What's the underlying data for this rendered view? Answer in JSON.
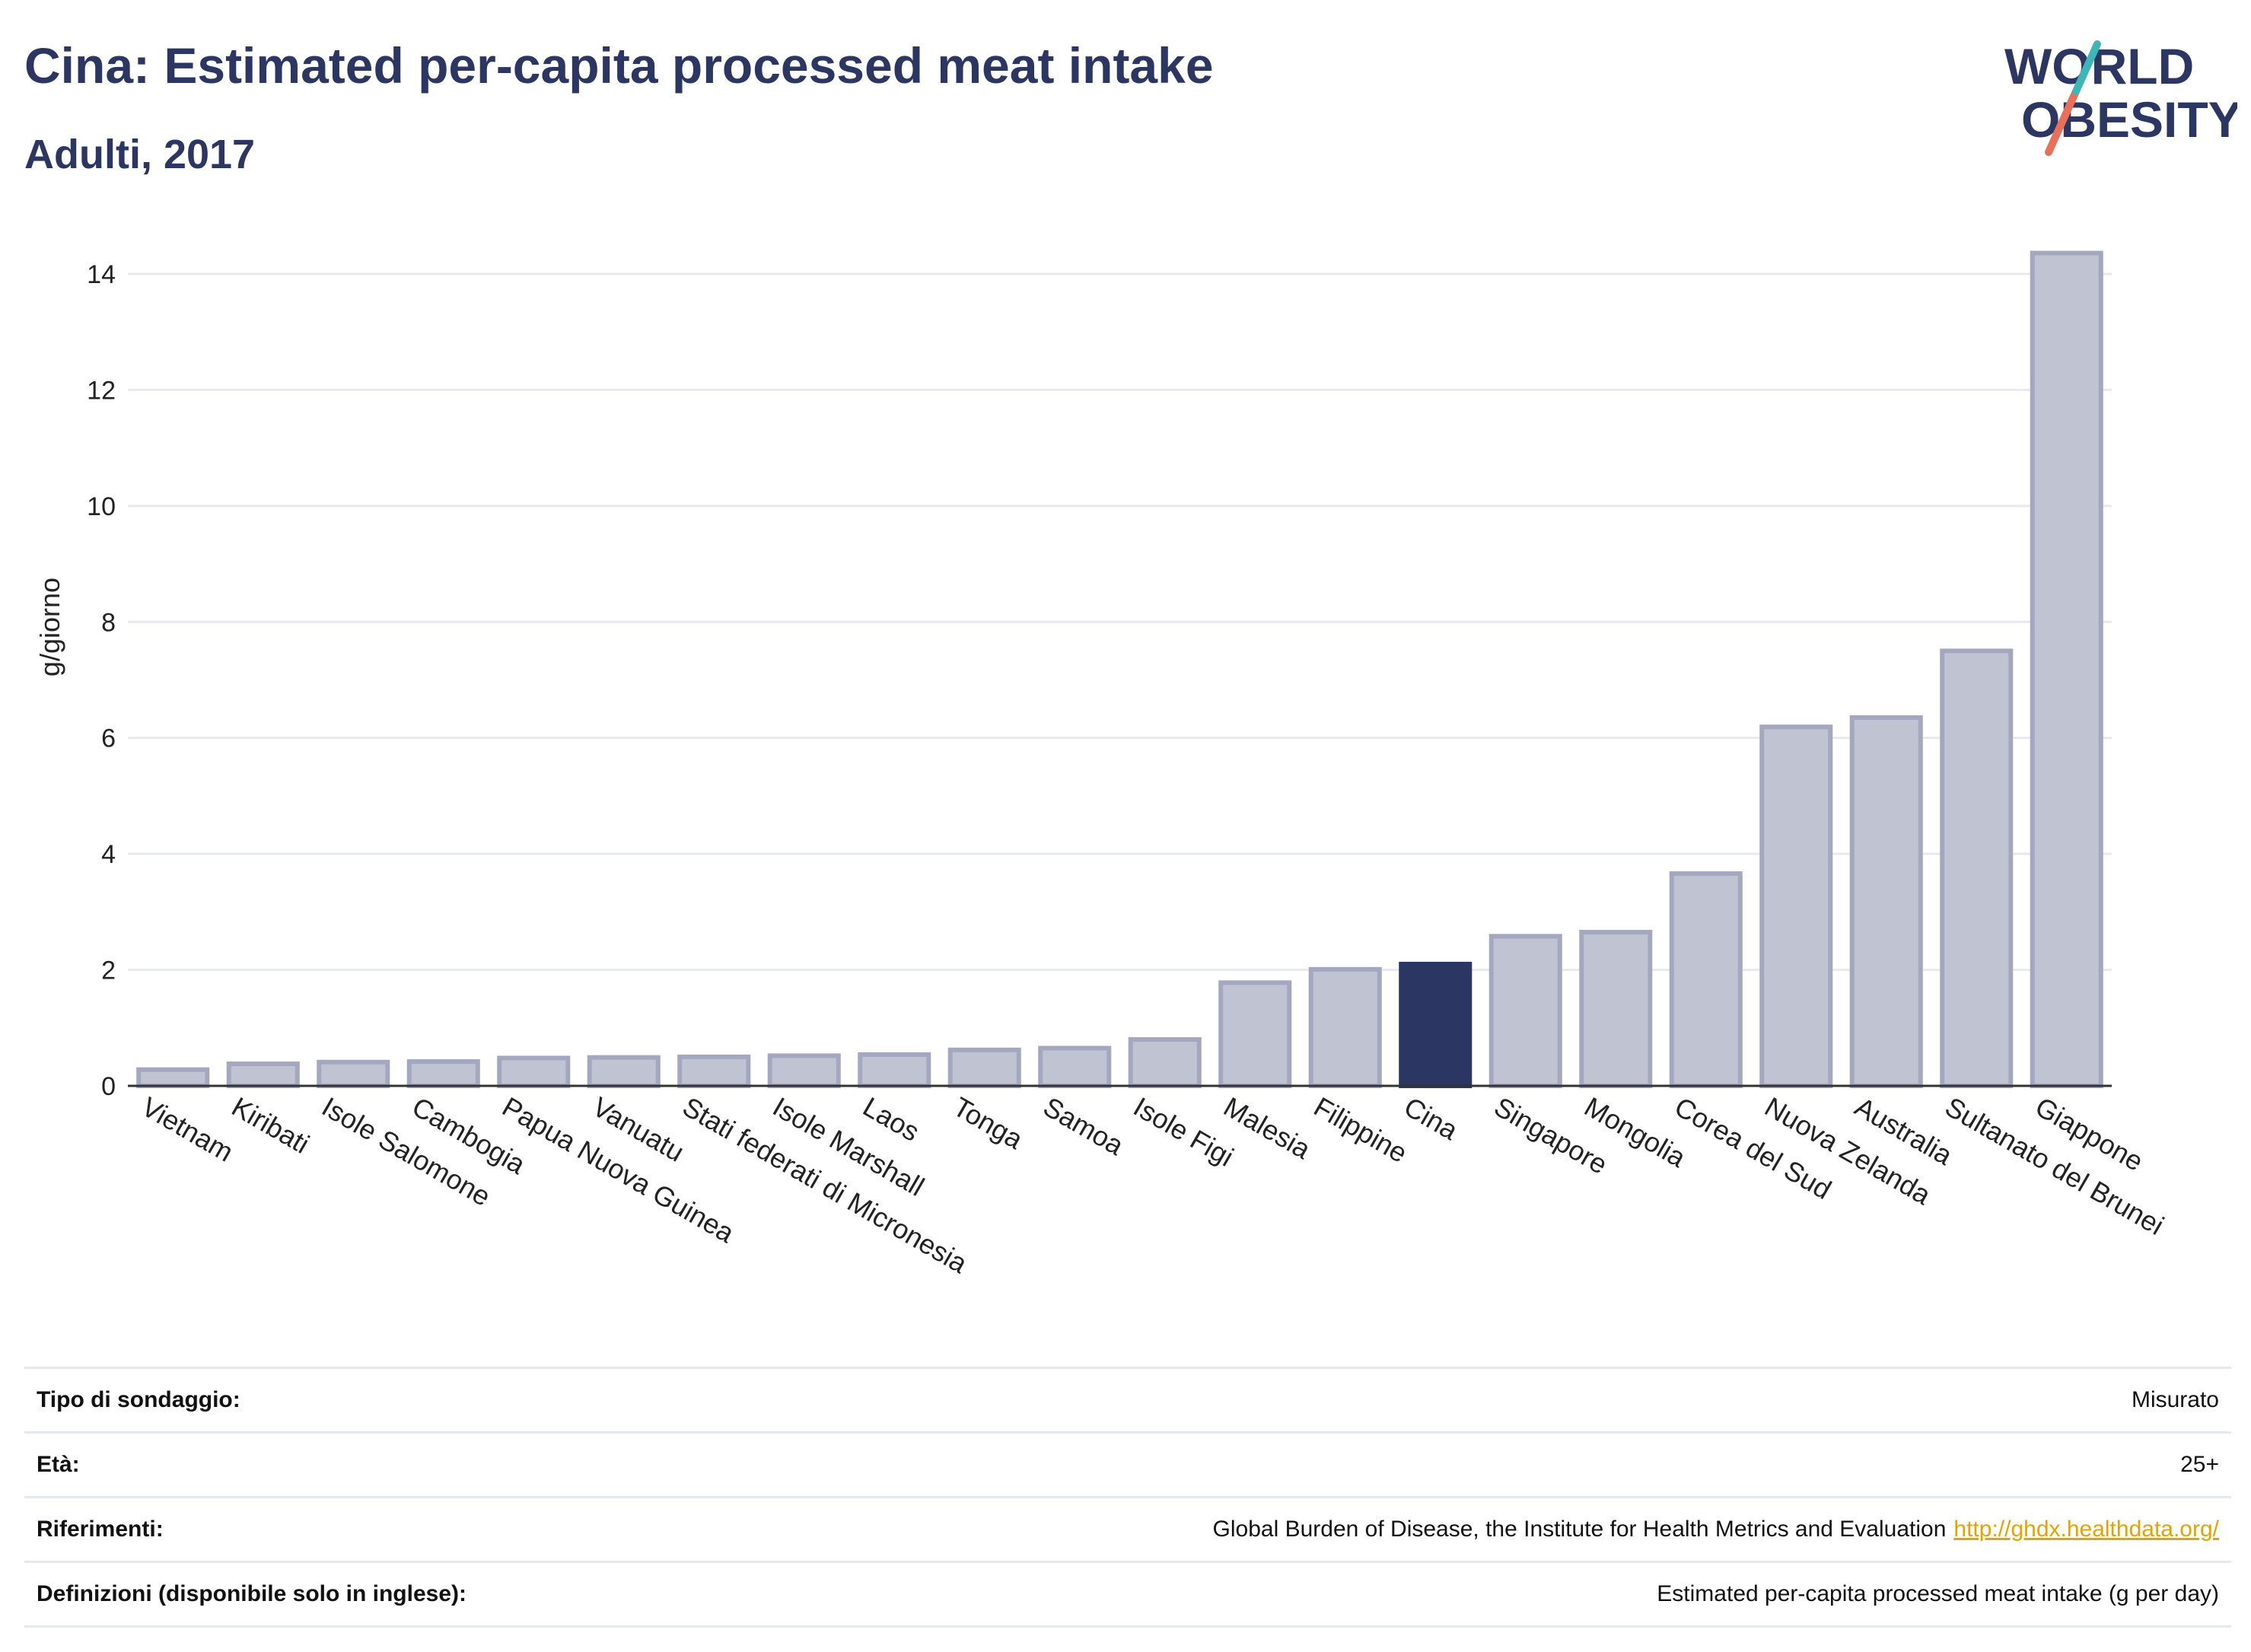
{
  "header": {
    "title": "Cina: Estimated per-capita processed meat intake",
    "subtitle": "Adulti, 2017"
  },
  "logo": {
    "line1": "WORLD",
    "line2": "OBESITY",
    "colors": {
      "text": "#2b3663",
      "teal": "#3cb6b6",
      "coral": "#e8705a"
    }
  },
  "chart_data": {
    "type": "bar",
    "ylabel": "g/giorno",
    "ylim": [
      0,
      15
    ],
    "yticks": [
      0,
      2,
      4,
      6,
      8,
      10,
      12,
      14
    ],
    "highlight": "Cina",
    "colors": {
      "bar": "#c0c3d1",
      "bar_edge": "#a3a8c0",
      "highlight": "#2b3663",
      "grid": "#e8e9ef"
    },
    "categories": [
      "Vietnam",
      "Kiribati",
      "Isole Salomone",
      "Cambogia",
      "Papua Nuova Guinea",
      "Vanuatu",
      "Stati federati di Micronesia",
      "Isole Marshall",
      "Laos",
      "Tonga",
      "Samoa",
      "Isole Figi",
      "Malesia",
      "Filippine",
      "Cina",
      "Singapore",
      "Mongolia",
      "Corea del Sud",
      "Nuova Zelanda",
      "Australia",
      "Sultanato del Brunei",
      "Giappone"
    ],
    "values": [
      0.28,
      0.38,
      0.41,
      0.42,
      0.48,
      0.49,
      0.5,
      0.52,
      0.54,
      0.62,
      0.65,
      0.8,
      1.78,
      2.01,
      2.1,
      2.58,
      2.65,
      3.66,
      6.19,
      6.35,
      7.5,
      14.36
    ]
  },
  "info": {
    "rows": [
      {
        "label": "Tipo di sondaggio:",
        "value": "Misurato"
      },
      {
        "label": "Età:",
        "value": "25+"
      },
      {
        "label": "Riferimenti:",
        "value": "Global Burden of Disease, the Institute for Health Metrics and Evaluation",
        "link": "http://ghdx.healthdata.org/"
      },
      {
        "label": "Definizioni (disponibile solo in inglese):",
        "value": "Estimated per-capita processed meat intake (g per day)"
      }
    ]
  }
}
